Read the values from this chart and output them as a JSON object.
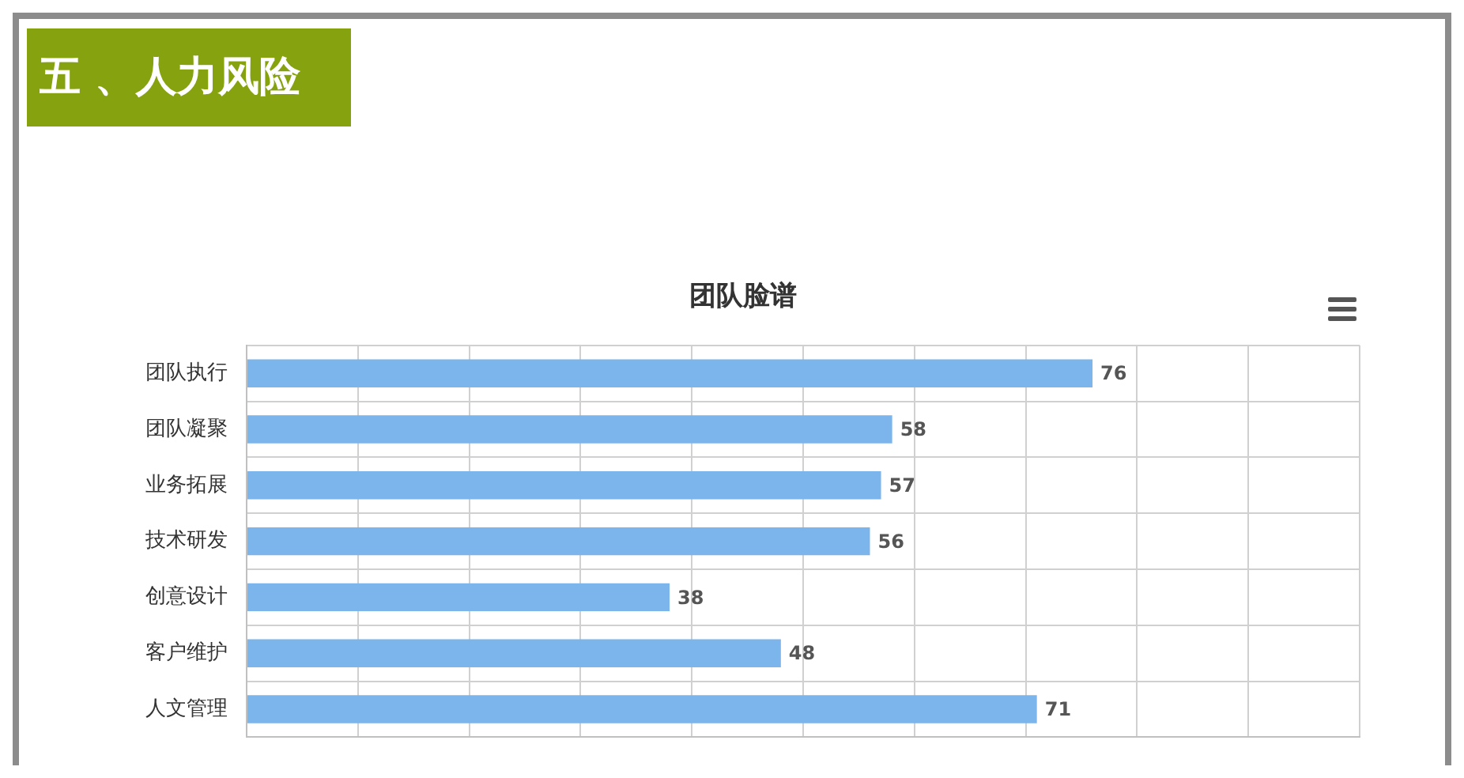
{
  "chart_data": {
    "type": "bar",
    "orientation": "horizontal",
    "title": "团队脸谱",
    "subtitle": "五 、人力风险",
    "categories": [
      "团队执行",
      "团队凝聚",
      "业务拓展",
      "技术研发",
      "创意设计",
      "客户维护",
      "人文管理"
    ],
    "values": [
      76,
      58,
      57,
      56,
      38,
      48,
      71
    ],
    "color": "#7cb5ec",
    "data_labels": true,
    "xlim": [
      0,
      100
    ],
    "xticks": [
      {
        "value": 0,
        "label": null
      },
      {
        "value": 10,
        "label": null
      },
      {
        "value": 20,
        "label": null
      },
      {
        "value": 30,
        "label": null
      },
      {
        "value": 40,
        "label": null
      },
      {
        "value": 50,
        "label": null
      },
      {
        "value": 60,
        "label": null
      },
      {
        "value": 70,
        "label": null
      },
      {
        "value": 80,
        "label": null
      },
      {
        "value": 90,
        "label": null
      },
      {
        "value": 100,
        "label": null
      }
    ],
    "tick_labels": "y",
    "grid": "x",
    "legend": false
  }
}
